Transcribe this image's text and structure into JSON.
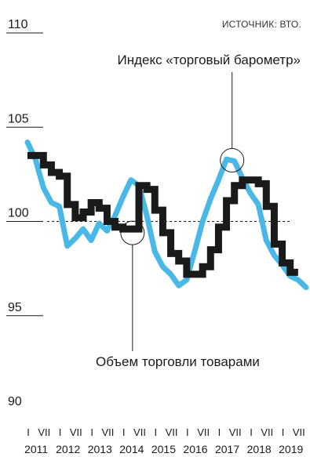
{
  "source_label": "ИСТОЧНИК: ВТО.",
  "chart_data": {
    "type": "line",
    "ylim": [
      90,
      110
    ],
    "yticks": [
      110,
      105,
      100,
      95,
      90
    ],
    "reference_line": 100,
    "grid": false,
    "years": [
      "2011",
      "2012",
      "2013",
      "2014",
      "2015",
      "2016",
      "2017",
      "2018",
      "2019"
    ],
    "month_labels": [
      "I",
      "VII"
    ],
    "x_range": [
      2011.0,
      2019.75
    ],
    "annotations": [
      {
        "text": "Индекс «торговый барометр»",
        "series": "barometer",
        "at_x": 2017.5
      },
      {
        "text": "Объем торговли товарами",
        "series": "trade_volume",
        "at_x": 2014.25
      }
    ],
    "series": [
      {
        "key": "barometer",
        "color": "#4ab8e6",
        "x": [
          2011.0,
          2011.25,
          2011.5,
          2011.75,
          2012.0,
          2012.25,
          2012.5,
          2012.75,
          2013.0,
          2013.25,
          2013.5,
          2013.75,
          2014.0,
          2014.25,
          2014.5,
          2014.75,
          2015.0,
          2015.25,
          2015.5,
          2015.75,
          2016.0,
          2016.25,
          2016.5,
          2016.75,
          2017.0,
          2017.25,
          2017.5,
          2017.75,
          2018.0,
          2018.25,
          2018.5,
          2018.75,
          2019.0,
          2019.25,
          2019.5,
          2019.75
        ],
        "values": [
          104.2,
          103.3,
          101.8,
          101.0,
          100.8,
          98.7,
          99.1,
          99.6,
          99.0,
          99.9,
          99.5,
          100.3,
          101.3,
          102.2,
          101.9,
          100.3,
          98.4,
          97.6,
          97.2,
          96.6,
          96.9,
          98.4,
          100.0,
          101.2,
          102.2,
          103.3,
          103.2,
          102.3,
          101.5,
          100.9,
          99.0,
          98.2,
          97.7,
          97.1,
          96.9,
          96.5
        ]
      },
      {
        "key": "trade_volume",
        "color": "#1a1a1a",
        "x": [
          2011.0,
          2011.25,
          2011.5,
          2011.75,
          2012.0,
          2012.25,
          2012.5,
          2012.75,
          2013.0,
          2013.25,
          2013.5,
          2013.75,
          2014.0,
          2014.25,
          2014.5,
          2014.75,
          2015.0,
          2015.25,
          2015.5,
          2015.75,
          2016.0,
          2016.25,
          2016.5,
          2016.75,
          2017.0,
          2017.25,
          2017.5,
          2017.75,
          2018.0,
          2018.25,
          2018.5,
          2018.75,
          2019.0,
          2019.25
        ],
        "values": [
          103.5,
          103.5,
          103.0,
          102.6,
          102.4,
          100.9,
          100.2,
          100.5,
          101.0,
          100.7,
          100.0,
          99.7,
          99.6,
          99.6,
          101.9,
          101.7,
          100.6,
          99.4,
          98.3,
          97.9,
          97.2,
          97.2,
          97.6,
          98.5,
          99.7,
          101.1,
          101.9,
          102.2,
          102.2,
          102.0,
          100.8,
          98.8,
          97.8,
          97.3
        ]
      }
    ]
  }
}
